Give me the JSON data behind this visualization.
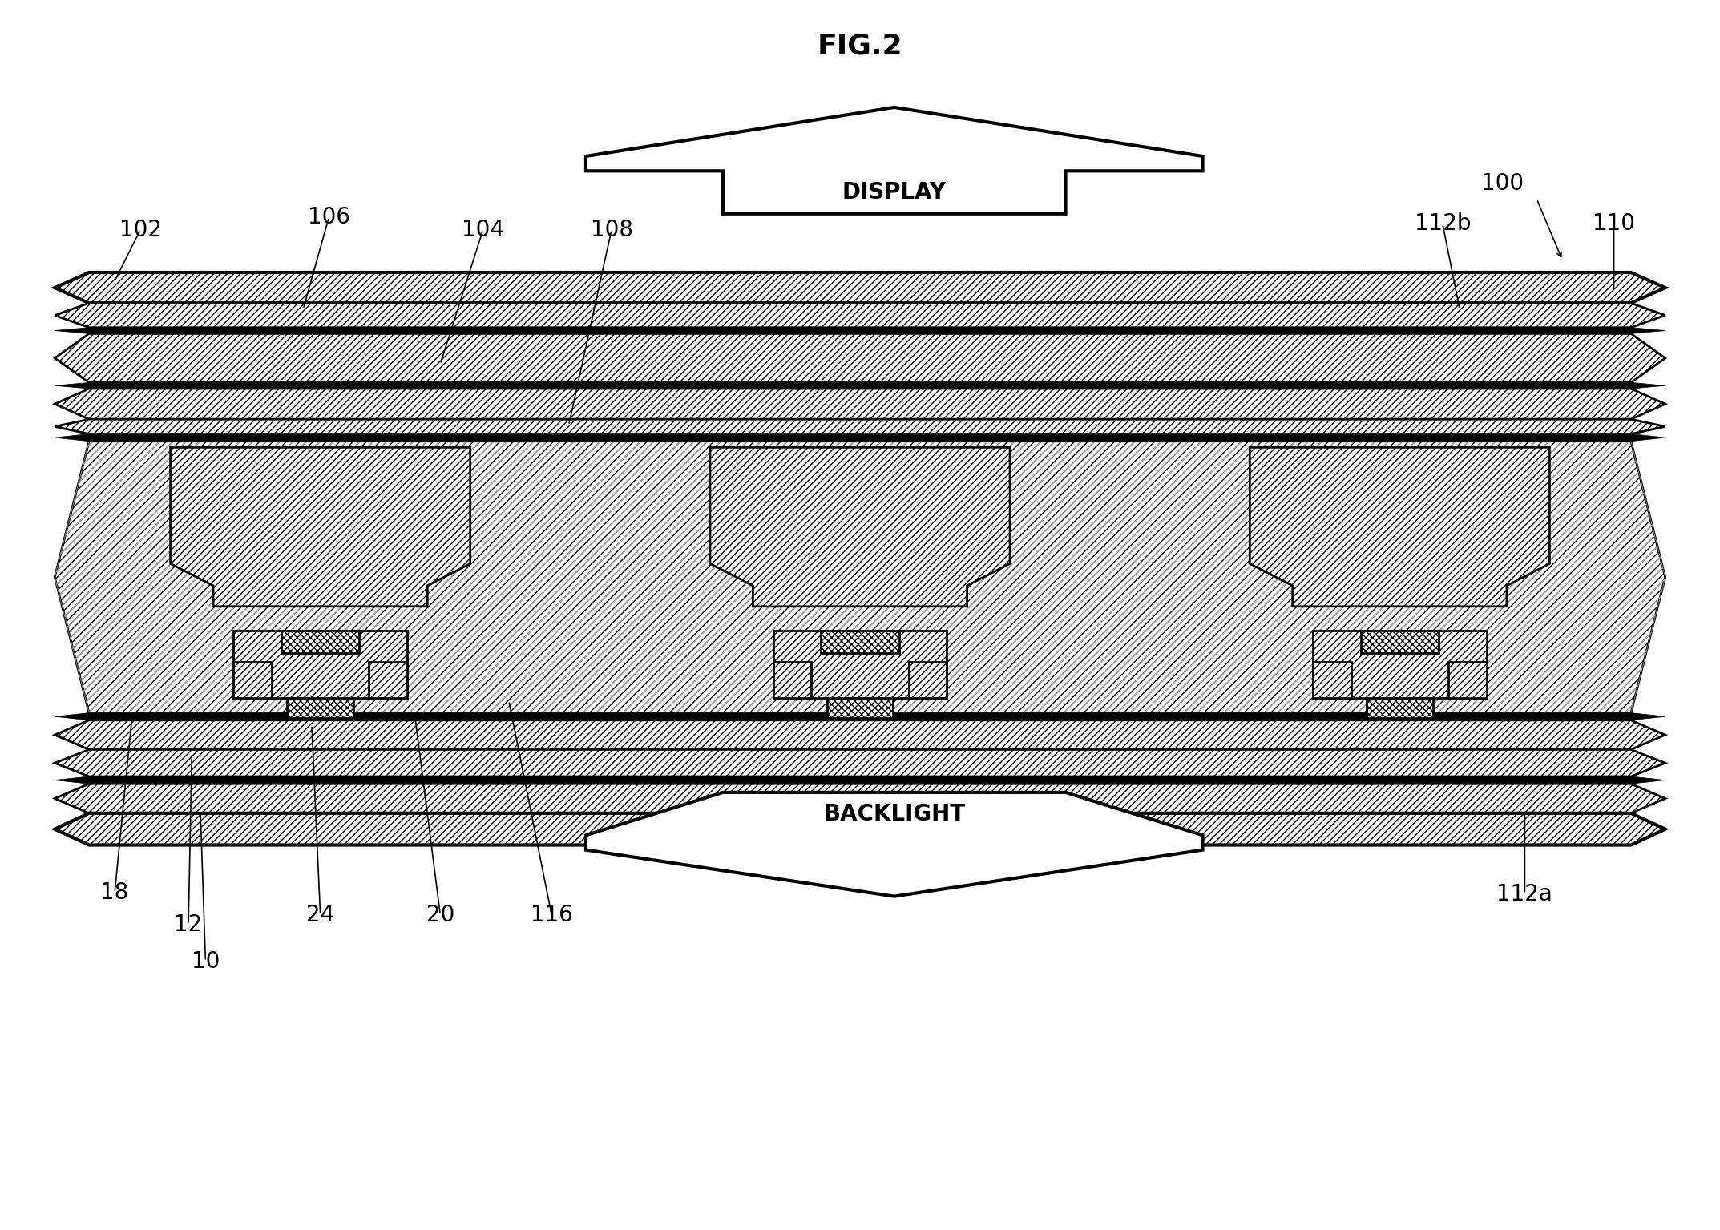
{
  "title": "FIG.2",
  "bg_color": "#ffffff",
  "fig_width": 21.46,
  "fig_height": 15.35,
  "display_label": "DISPLAY",
  "backlight_label": "BACKLIGHT",
  "hatch_main": "////",
  "hatch_alt": "////",
  "hatch_lc": "////",
  "lw": 2.0,
  "lw_thick": 3.0,
  "label_fs": 20,
  "title_fs": 26
}
